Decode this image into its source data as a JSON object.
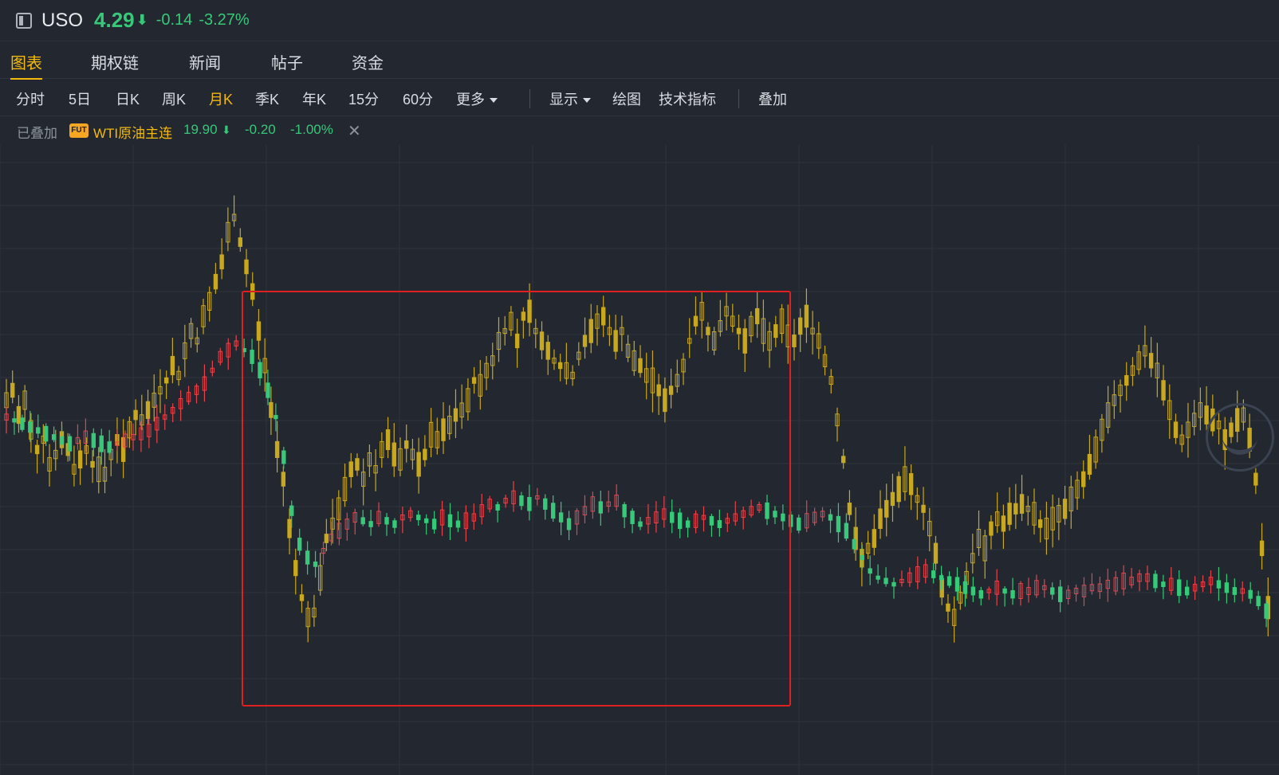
{
  "header": {
    "ticker": "USO",
    "price": "4.29",
    "arrow": "⬇",
    "change": "-0.14",
    "change_pct": "-3.27%",
    "sidebar_icon": "sidebar-toggle-icon"
  },
  "tabs": [
    {
      "label": "图表",
      "active": true
    },
    {
      "label": "期权链"
    },
    {
      "label": "新闻"
    },
    {
      "label": "帖子"
    },
    {
      "label": "资金"
    }
  ],
  "toolbar": {
    "periods": [
      "分时",
      "5日",
      "日K",
      "周K",
      "月K",
      "季K",
      "年K",
      "15分",
      "60分"
    ],
    "active_period": "月K",
    "more": "更多",
    "display": "显示",
    "draw": "绘图",
    "indicators": "技术指标",
    "overlay": "叠加"
  },
  "overlay": {
    "label": "已叠加",
    "badge": "FUT",
    "name": "WTI原油主连",
    "price": "19.90",
    "arrow": "⬇",
    "change": "-0.20",
    "change_pct": "-1.00%",
    "close_icon": "close-icon"
  },
  "colors": {
    "up": "#e8434a",
    "down": "#37c979",
    "overlay_series": "#c8a81e",
    "highlight_box": "#e02020",
    "accent": "#f5b90c"
  },
  "chart_data": {
    "type": "candlestick",
    "series": [
      {
        "role": "main-candles"
      },
      {
        "role": "overlay-candles"
      }
    ],
    "y_range": [
      0,
      100
    ],
    "overlay_path": [
      58,
      60,
      55,
      58,
      52,
      48,
      50,
      45,
      47,
      50,
      48,
      44,
      46,
      48,
      45,
      44,
      43,
      47,
      50,
      48,
      52,
      55,
      54,
      56,
      58,
      60,
      62,
      65,
      63,
      68,
      72,
      70,
      75,
      78,
      82,
      86,
      92,
      95,
      90,
      85,
      80,
      72,
      65,
      56,
      48,
      42,
      32,
      24,
      18,
      14,
      15,
      22,
      30,
      33,
      36,
      40,
      44,
      45,
      42,
      46,
      44,
      48,
      50,
      47,
      46,
      49,
      47,
      45,
      47,
      51,
      50,
      52,
      53,
      55,
      56,
      58,
      62,
      61,
      64,
      66,
      70,
      72,
      74,
      70,
      75,
      76,
      72,
      70,
      68,
      66,
      65,
      64,
      63,
      67,
      70,
      72,
      74,
      75,
      72,
      70,
      72,
      68,
      66,
      65,
      63,
      62,
      60,
      58,
      60,
      62,
      65,
      70,
      74,
      76,
      72,
      70,
      73,
      76,
      74,
      72,
      70,
      73,
      75,
      72,
      70,
      72,
      74,
      71,
      70,
      73,
      75,
      72,
      70,
      66,
      62,
      54,
      46,
      36,
      30,
      26,
      28,
      30,
      34,
      36,
      38,
      40,
      42,
      41,
      38,
      36,
      32,
      27,
      20,
      16,
      14,
      18,
      22,
      26,
      30,
      28,
      32,
      34,
      33,
      35,
      36,
      37,
      36,
      35,
      33,
      32,
      34,
      35,
      36,
      38,
      40,
      42,
      45,
      48,
      52,
      55,
      58,
      60,
      62,
      64,
      66,
      68,
      66,
      64,
      60,
      56,
      52,
      50,
      52,
      54,
      56,
      55,
      54,
      53,
      50,
      52,
      54,
      55,
      50,
      42,
      28,
      16
    ],
    "main_path": [
      52,
      51,
      50,
      49,
      48,
      47,
      46,
      45,
      44,
      45,
      46,
      45,
      44,
      43,
      44,
      45,
      46,
      47,
      48,
      50,
      52,
      54,
      56,
      58,
      60,
      62,
      66,
      70,
      72,
      74,
      72,
      70,
      66,
      60,
      52,
      40,
      24,
      14,
      10,
      8,
      12,
      16,
      18,
      20,
      22,
      21,
      20,
      22,
      21,
      20,
      22,
      23,
      22,
      21,
      20,
      22,
      21,
      20,
      21,
      22,
      24,
      26,
      25,
      27,
      28,
      27,
      26,
      28,
      26,
      24,
      22,
      20,
      22,
      24,
      26,
      25,
      26,
      27,
      24,
      22,
      20,
      21,
      22,
      23,
      22,
      21,
      20,
      21,
      22,
      21,
      20,
      21,
      22,
      23,
      24,
      25,
      24,
      23,
      22,
      21,
      20,
      21,
      22,
      23,
      22,
      20,
      18,
      14,
      10,
      6,
      4,
      3,
      2,
      3,
      4,
      5,
      6,
      5,
      4,
      3,
      2,
      1,
      0,
      -1,
      0,
      1,
      0,
      -1,
      0,
      0,
      1,
      1,
      0,
      -1,
      -1,
      0,
      0,
      1,
      1,
      2,
      2,
      3,
      3,
      4,
      4,
      3,
      2,
      2,
      1,
      0,
      1,
      2,
      3,
      2,
      1,
      0,
      0,
      -1,
      -3,
      -6
    ]
  }
}
